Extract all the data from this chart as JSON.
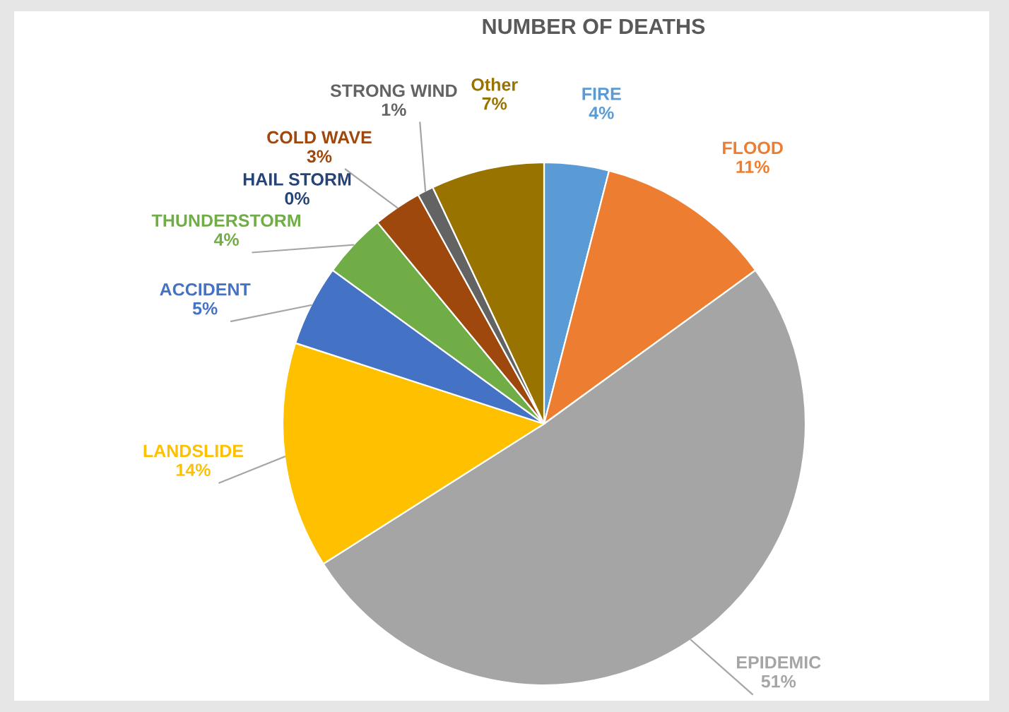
{
  "chart_data": {
    "type": "pie",
    "title": "NUMBER OF DEATHS",
    "categories": [
      "FIRE",
      "FLOOD",
      "EPIDEMIC",
      "LANDSLIDE",
      "ACCIDENT",
      "THUNDERSTORM",
      "HAIL STORM",
      "COLD WAVE",
      "STRONG WIND",
      "Other"
    ],
    "values": [
      4,
      11,
      51,
      14,
      5,
      4,
      0,
      3,
      1,
      7
    ],
    "colors": [
      "#5b9bd5",
      "#ed7d31",
      "#a5a5a5",
      "#ffc000",
      "#4472c4",
      "#70ad47",
      "#264478",
      "#9e480e",
      "#636363",
      "#997300"
    ],
    "value_labels": [
      "4%",
      "11%",
      "51%",
      "14%",
      "5%",
      "4%",
      "0%",
      "3%",
      "1%",
      "7%"
    ]
  }
}
